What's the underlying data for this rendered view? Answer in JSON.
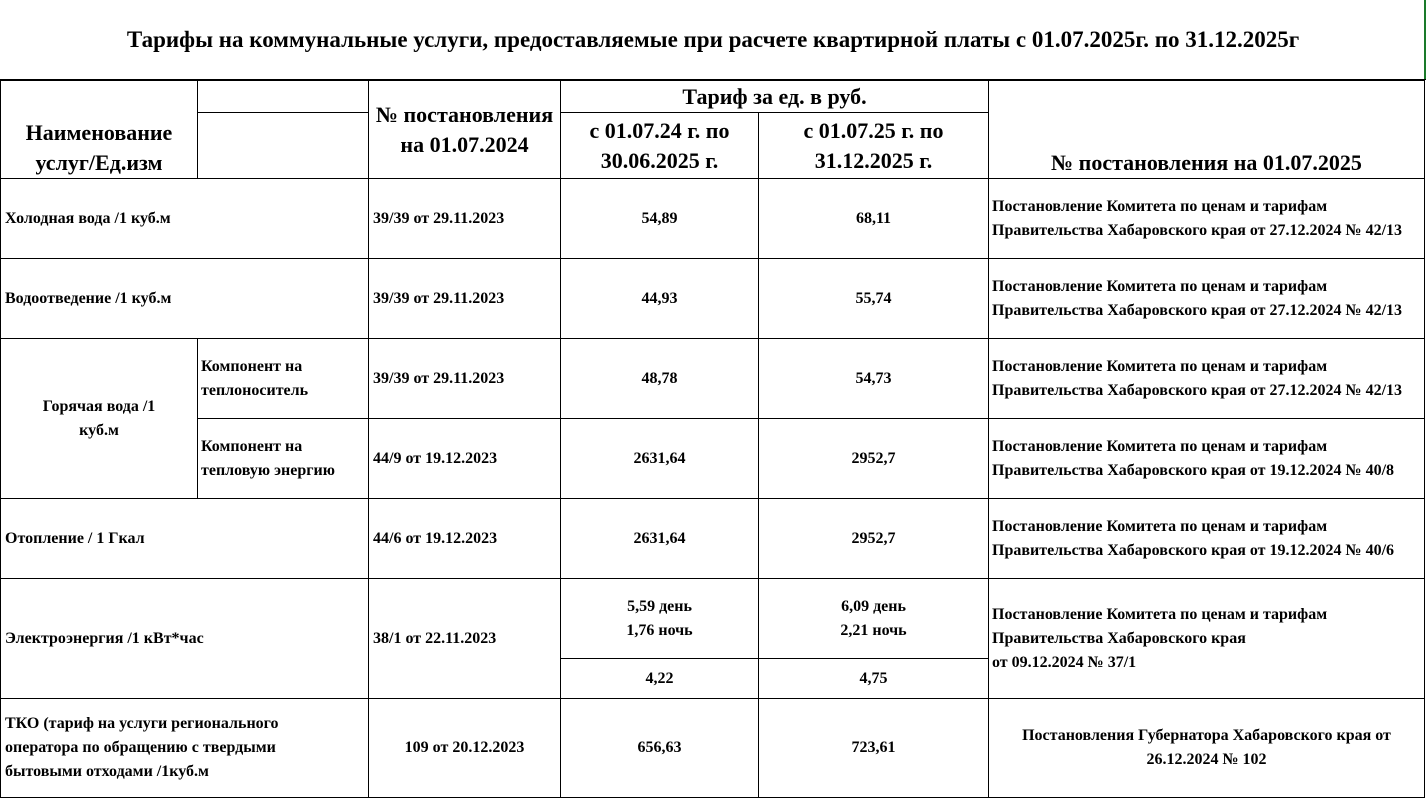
{
  "title": "Тарифы на коммунальные услуги, предоставляемые при расчете квартирной платы с 01.07.2025г. по 31.12.2025г",
  "headers": {
    "name": "Наименование услуг/Ед.изм",
    "resolution": "№ постановления на 01.07.2024",
    "tariff_group": "Тариф за ед. в руб.",
    "period1": "с 01.07.24 г. по 30.06.2025 г.",
    "period2": "с 01.07.25 г. по 31.12.2025 г.",
    "resolution2025": "№ постановления на 01.07.2025"
  },
  "rows": {
    "cold": {
      "name": "Холодная вода /1 куб.м",
      "res": "39/39 от 29.11.2023",
      "t1": "54,89",
      "t2": "68,11",
      "doc": "Постановление Комитета по ценам и тарифам Правительства Хабаровского края от 27.12.2024 № 42/13"
    },
    "drain": {
      "name": "Водоотведение /1 куб.м",
      "res": "39/39 от 29.11.2023",
      "t1": "44,93",
      "t2": "55,74",
      "doc": "Постановление Комитета по ценам и тарифам Правительства Хабаровского края от 27.12.2024 № 42/13"
    },
    "hot": {
      "name": "Горячая вода /1 куб.м",
      "comp1": {
        "name": "Компонент на теплоноситель",
        "res": "39/39 от 29.11.2023",
        "t1": "48,78",
        "t2": "54,73",
        "doc": "Постановление Комитета по ценам и тарифам Правительства Хабаровского края от 27.12.2024 № 42/13"
      },
      "comp2": {
        "name": "Компонент на тепловую энергию",
        "res": "44/9 от 19.12.2023",
        "t1": "2631,64",
        "t2": "2952,7",
        "doc": "Постановление Комитета по ценам и тарифам Правительства Хабаровского края  от 19.12.2024 № 40/8"
      }
    },
    "heat": {
      "name": "Отопление / 1 Гкал",
      "res": "44/6 от 19.12.2023",
      "t1": "2631,64",
      "t2": "2952,7",
      "doc": "Постановление Комитета по ценам и тарифам Правительства Хабаровского края  от 19.12.2024 № 40/6"
    },
    "elec": {
      "name": "Электроэнергия  /1 кВт*час",
      "res": "38/1 от 22.11.2023",
      "t1_day": "5,59  день",
      "t1_night": "1,76 ночь",
      "t2_day": "6,09  день",
      "t2_night": "2,21 ночь",
      "t1_single": "4,22",
      "t2_single": "4,75",
      "doc1": "Постановление Комитета по ценам и тарифам",
      "doc2": "Правительства Хабаровского края",
      "doc3": "от 09.12.2024 № 37/1"
    },
    "tko": {
      "name": "ТКО (тариф на услуги регионального оператора по обращению с твердыми бытовыми отходами /1куб.м",
      "res": "109 от 20.12.2023",
      "t1": "656,63",
      "t2": "723,61",
      "doc": "Постановления Губернатора Хабаровского края от 26.12.2024 № 102"
    }
  }
}
